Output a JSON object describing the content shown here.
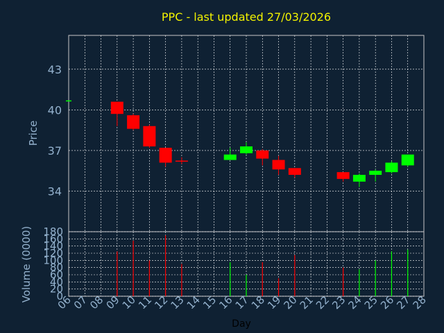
{
  "chart_data": [
    {
      "type": "candlestick",
      "title": "PPC - last updated 27/03/2026",
      "ylabel": "Price",
      "ylim": [
        31,
        45.5
      ],
      "yticks": [
        34,
        37,
        40,
        43
      ],
      "grid": true,
      "colors": {
        "up": "#00ff00",
        "down": "#ff0000",
        "grid": "#ffffff",
        "text": "#93b1cd",
        "title": "#f2f200",
        "background": "#0f2133"
      },
      "candles": [
        {
          "x": "06",
          "open": 40.7,
          "close": 40.7,
          "high": 40.7,
          "low": 40.7
        },
        {
          "x": "09",
          "open": 40.6,
          "close": 39.7,
          "high": 40.6,
          "low": 38.8
        },
        {
          "x": "10",
          "open": 39.6,
          "close": 38.6,
          "high": 39.7,
          "low": 38.5
        },
        {
          "x": "11",
          "open": 38.8,
          "close": 37.3,
          "high": 38.9,
          "low": 37.2
        },
        {
          "x": "12",
          "open": 37.2,
          "close": 36.1,
          "high": 37.2,
          "low": 35.8
        },
        {
          "x": "13",
          "open": 36.25,
          "close": 36.2,
          "high": 36.5,
          "low": 36.0
        },
        {
          "x": "16",
          "open": 36.3,
          "close": 36.7,
          "high": 37.2,
          "low": 36.3
        },
        {
          "x": "17",
          "open": 36.8,
          "close": 37.3,
          "high": 37.6,
          "low": 36.7
        },
        {
          "x": "18",
          "open": 37.0,
          "close": 36.4,
          "high": 37.1,
          "low": 35.9
        },
        {
          "x": "19",
          "open": 36.3,
          "close": 35.6,
          "high": 36.6,
          "low": 35.2
        },
        {
          "x": "20",
          "open": 35.7,
          "close": 35.2,
          "high": 35.7,
          "low": 35.0
        },
        {
          "x": "23",
          "open": 35.4,
          "close": 34.9,
          "high": 35.4,
          "low": 34.7
        },
        {
          "x": "24",
          "open": 34.7,
          "close": 35.2,
          "high": 35.3,
          "low": 34.3
        },
        {
          "x": "25",
          "open": 35.2,
          "close": 35.5,
          "high": 35.6,
          "low": 34.7
        },
        {
          "x": "26",
          "open": 35.4,
          "close": 36.1,
          "high": 36.2,
          "low": 35.3
        },
        {
          "x": "27",
          "open": 35.9,
          "close": 36.7,
          "high": 36.7,
          "low": 35.8
        }
      ]
    },
    {
      "type": "bar",
      "ylabel": "Volume (0000)",
      "xlabel": "Day",
      "ylim": [
        0,
        180
      ],
      "yticks": [
        0,
        20,
        40,
        60,
        80,
        100,
        120,
        140,
        160,
        180
      ],
      "categories": [
        "06",
        "07",
        "08",
        "09",
        "10",
        "11",
        "12",
        "13",
        "14",
        "15",
        "16",
        "17",
        "18",
        "19",
        "20",
        "21",
        "22",
        "23",
        "24",
        "25",
        "26",
        "27",
        "28"
      ],
      "bars": [
        {
          "x": "09",
          "value": 125,
          "direction": "down"
        },
        {
          "x": "10",
          "value": 155,
          "direction": "down"
        },
        {
          "x": "11",
          "value": 100,
          "direction": "down"
        },
        {
          "x": "12",
          "value": 170,
          "direction": "down"
        },
        {
          "x": "13",
          "value": 90,
          "direction": "down"
        },
        {
          "x": "16",
          "value": 95,
          "direction": "up"
        },
        {
          "x": "17",
          "value": 60,
          "direction": "up"
        },
        {
          "x": "18",
          "value": 95,
          "direction": "down"
        },
        {
          "x": "19",
          "value": 50,
          "direction": "down"
        },
        {
          "x": "20",
          "value": 115,
          "direction": "down"
        },
        {
          "x": "23",
          "value": 80,
          "direction": "down"
        },
        {
          "x": "24",
          "value": 75,
          "direction": "up"
        },
        {
          "x": "25",
          "value": 100,
          "direction": "up"
        },
        {
          "x": "26",
          "value": 125,
          "direction": "up"
        },
        {
          "x": "27",
          "value": 130,
          "direction": "up"
        }
      ]
    }
  ]
}
